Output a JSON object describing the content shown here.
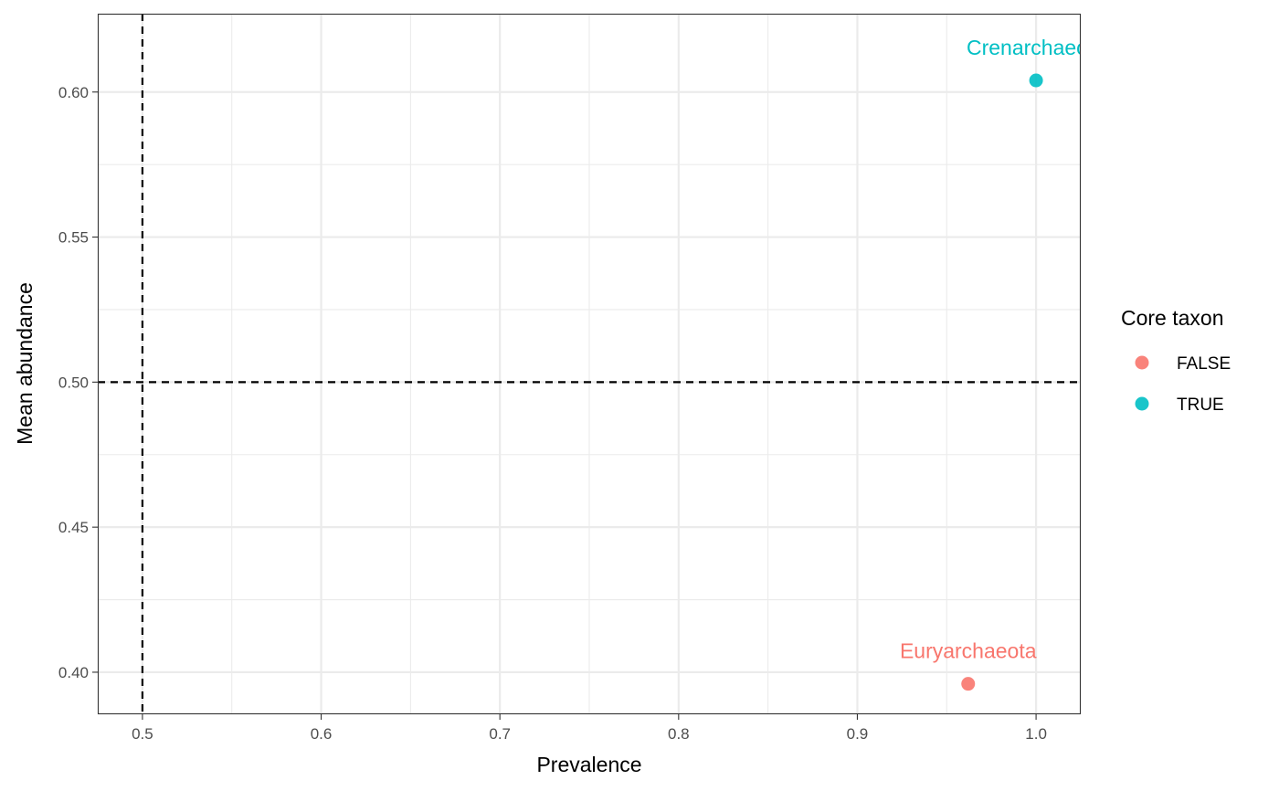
{
  "chart_data": {
    "type": "scatter",
    "title": "",
    "xlabel": "Prevalence",
    "ylabel": "Mean abundance",
    "xlim": [
      0.475,
      1.025
    ],
    "ylim": [
      0.3855,
      0.627
    ],
    "x_ticks": [
      0.5,
      0.6,
      0.7,
      0.8,
      0.9,
      1.0
    ],
    "x_tick_labels": [
      "0.5",
      "0.6",
      "0.7",
      "0.8",
      "0.9",
      "1.0"
    ],
    "y_ticks": [
      0.4,
      0.45,
      0.5,
      0.55,
      0.6
    ],
    "y_tick_labels": [
      "0.40",
      "0.45",
      "0.50",
      "0.55",
      "0.60"
    ],
    "grid": true,
    "reference_lines": {
      "vertical_x": 0.5,
      "horizontal_y": 0.5,
      "style": "dashed"
    },
    "legend": {
      "title": "Core taxon",
      "placement": "right",
      "entries": [
        {
          "label": "FALSE",
          "color": "#F8766D"
        },
        {
          "label": "TRUE",
          "color": "#00BFC4"
        }
      ]
    },
    "series": [
      {
        "name": "FALSE",
        "color": "#F8766D",
        "points": [
          {
            "x": 0.962,
            "y": 0.396,
            "label": "Euryarchaeota"
          }
        ]
      },
      {
        "name": "TRUE",
        "color": "#00BFC4",
        "points": [
          {
            "x": 1.0,
            "y": 0.604,
            "label": "Crenarchaeota"
          }
        ]
      }
    ]
  }
}
